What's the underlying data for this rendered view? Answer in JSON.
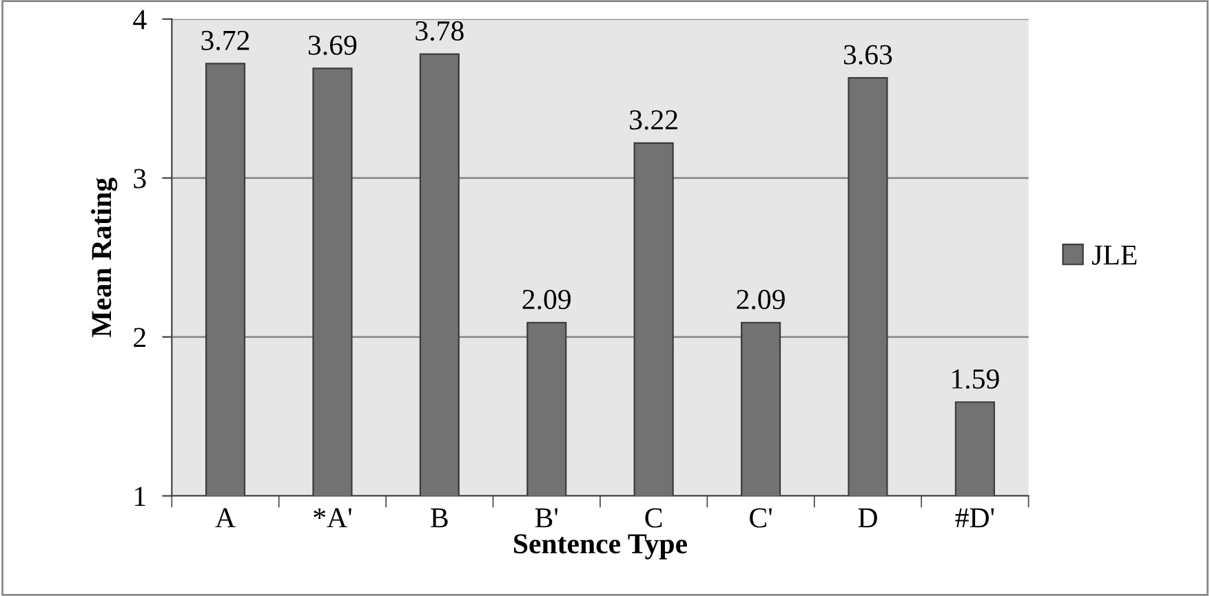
{
  "chart_data": {
    "type": "bar",
    "xlabel": "Sentence Type",
    "ylabel": "Mean Rating",
    "categories": [
      "A",
      "*A'",
      "B",
      "B'",
      "C",
      "C'",
      "D",
      "#D'"
    ],
    "series": [
      {
        "name": "JLE",
        "color": "#727272",
        "values": [
          3.72,
          3.69,
          3.78,
          2.09,
          3.22,
          2.09,
          3.63,
          1.59
        ]
      }
    ],
    "ylim": [
      1,
      4
    ],
    "yticks": [
      1,
      2,
      3,
      4
    ],
    "grid": "y",
    "legend": "right",
    "data_labels": true
  }
}
